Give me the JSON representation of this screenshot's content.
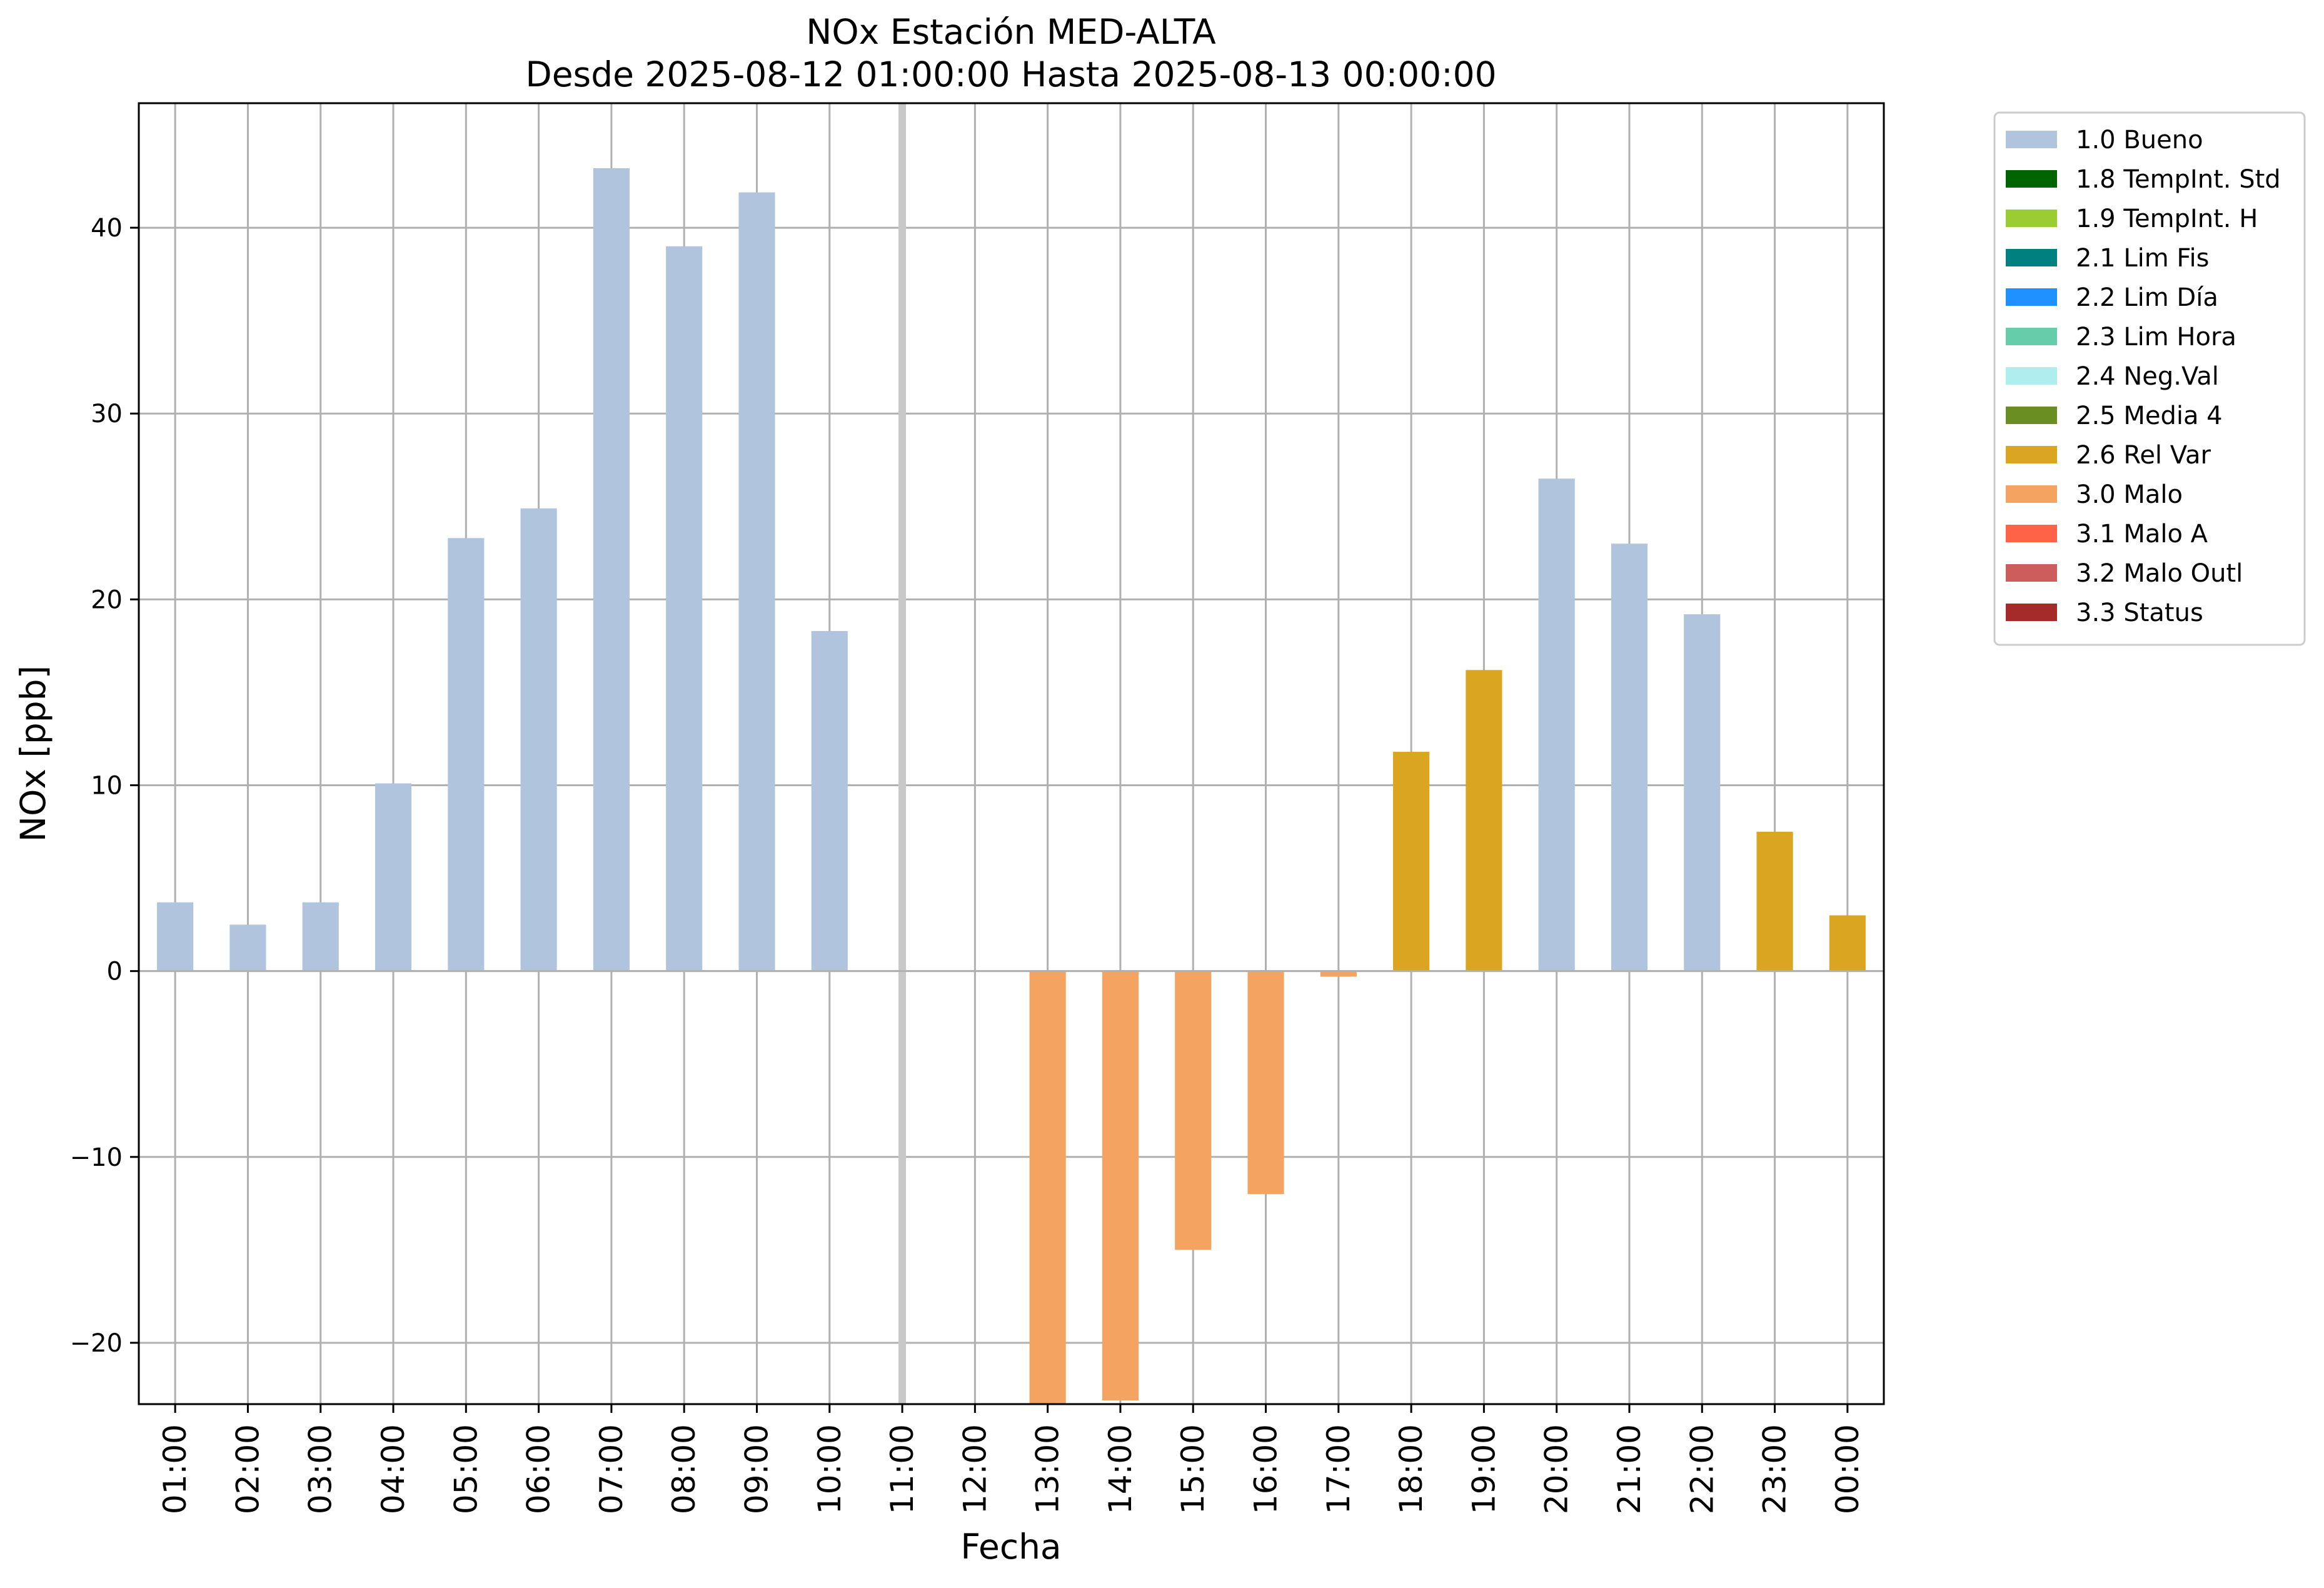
{
  "chart_data": {
    "type": "bar",
    "title_line1": "NOx Estación MED-ALTA",
    "title_line2": "Desde 2025-08-12 01:00:00 Hasta 2025-08-13 00:00:00",
    "xlabel": "Fecha",
    "ylabel": "NOx [ppb]",
    "ylim": [
      -23.3,
      46.7
    ],
    "yticks": [
      -20,
      -10,
      0,
      10,
      20,
      30,
      40
    ],
    "grid": true,
    "legend_position": "outside-right",
    "highlight_category": "11:00",
    "highlight_color": "#c8c8c8",
    "categories": [
      "01:00",
      "02:00",
      "03:00",
      "04:00",
      "05:00",
      "06:00",
      "07:00",
      "08:00",
      "09:00",
      "10:00",
      "11:00",
      "12:00",
      "13:00",
      "14:00",
      "15:00",
      "16:00",
      "17:00",
      "18:00",
      "19:00",
      "20:00",
      "21:00",
      "22:00",
      "23:00",
      "00:00"
    ],
    "values": [
      3.7,
      2.5,
      3.7,
      10.1,
      23.3,
      24.9,
      43.2,
      39.0,
      41.9,
      18.3,
      null,
      null,
      -23.3,
      -23.1,
      -15.0,
      -12.0,
      -0.3,
      11.8,
      16.2,
      26.5,
      23.0,
      19.2,
      7.5,
      3.0
    ],
    "flags": [
      "1.0 Bueno",
      "1.0 Bueno",
      "1.0 Bueno",
      "1.0 Bueno",
      "1.0 Bueno",
      "1.0 Bueno",
      "1.0 Bueno",
      "1.0 Bueno",
      "1.0 Bueno",
      "1.0 Bueno",
      null,
      null,
      "3.0 Malo",
      "3.0 Malo",
      "3.0 Malo",
      "3.0 Malo",
      "3.0 Malo",
      "2.6 Rel Var",
      "2.6 Rel Var",
      "1.0 Bueno",
      "1.0 Bueno",
      "1.0 Bueno",
      "2.6 Rel Var",
      "2.6 Rel Var"
    ],
    "legend": [
      {
        "label": "1.0 Bueno",
        "color": "#b0c4de"
      },
      {
        "label": "1.8 TempInt. Std",
        "color": "#006400"
      },
      {
        "label": "1.9 TempInt. H",
        "color": "#9acd32"
      },
      {
        "label": "2.1 Lim Fis",
        "color": "#008080"
      },
      {
        "label": "2.2 Lim Día",
        "color": "#1e90ff"
      },
      {
        "label": "2.3 Lim Hora",
        "color": "#66cdaa"
      },
      {
        "label": "2.4 Neg.Val",
        "color": "#afeeee"
      },
      {
        "label": "2.5 Media 4",
        "color": "#6b8e23"
      },
      {
        "label": "2.6 Rel Var",
        "color": "#daa520"
      },
      {
        "label": "3.0 Malo",
        "color": "#f4a460"
      },
      {
        "label": "3.1 Malo A",
        "color": "#ff6347"
      },
      {
        "label": "3.2 Malo Outl",
        "color": "#cd5c5c"
      },
      {
        "label": "3.3 Status",
        "color": "#a52a2a"
      }
    ]
  }
}
